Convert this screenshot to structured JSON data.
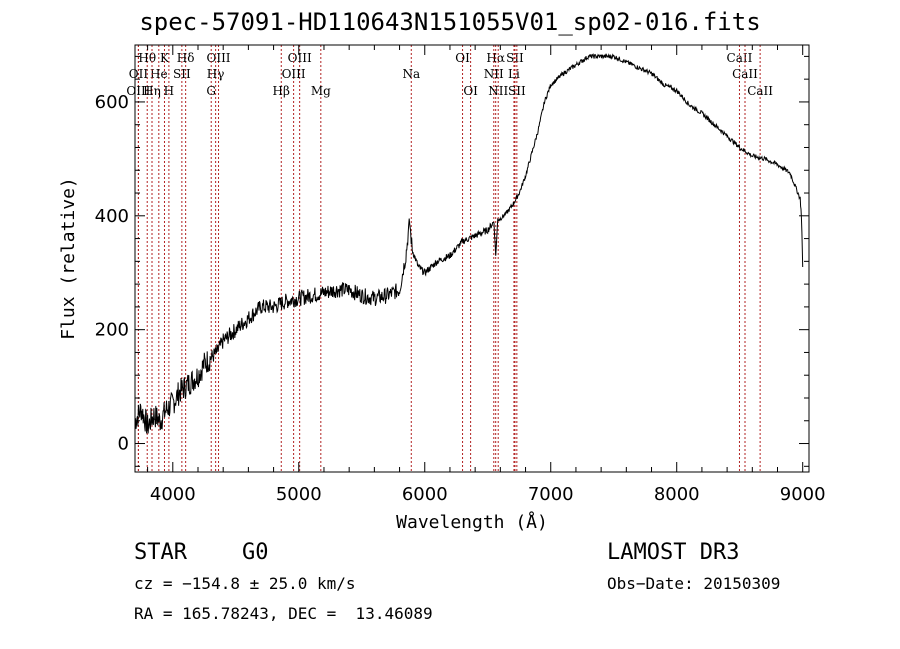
{
  "chart_data": {
    "type": "line",
    "title": "spec-57091-HD110643N151055V01_sp02-016.fits",
    "xlabel": "Wavelength (Å)",
    "ylabel": "Flux (relative)",
    "xlim": [
      3700,
      9050
    ],
    "ylim": [
      -50,
      700
    ],
    "xticks": [
      4000,
      5000,
      6000,
      7000,
      8000,
      9000
    ],
    "yticks": [
      0,
      200,
      400,
      600
    ],
    "xtick_labels": [
      "4000",
      "5000",
      "6000",
      "7000",
      "8000",
      "9000"
    ],
    "ytick_labels": [
      "0",
      "200",
      "400",
      "600"
    ],
    "series": [
      {
        "name": "spectrum",
        "x": [
          3700,
          3750,
          3800,
          3850,
          3900,
          3950,
          4000,
          4050,
          4100,
          4150,
          4200,
          4250,
          4300,
          4350,
          4400,
          4450,
          4500,
          4600,
          4700,
          4800,
          4900,
          5000,
          5100,
          5200,
          5300,
          5400,
          5500,
          5600,
          5700,
          5800,
          5850,
          5880,
          5900,
          5950,
          6000,
          6050,
          6100,
          6200,
          6300,
          6400,
          6500,
          6550,
          6563,
          6580,
          6600,
          6650,
          6700,
          6750,
          6800,
          6850,
          6900,
          6950,
          7000,
          7100,
          7200,
          7300,
          7400,
          7500,
          7600,
          7700,
          7800,
          7900,
          8000,
          8100,
          8200,
          8300,
          8400,
          8500,
          8600,
          8700,
          8800,
          8900,
          8980,
          8990,
          9000
        ],
        "y": [
          40,
          60,
          30,
          50,
          40,
          60,
          70,
          90,
          100,
          110,
          120,
          140,
          150,
          160,
          180,
          190,
          200,
          220,
          240,
          240,
          250,
          255,
          260,
          265,
          270,
          270,
          260,
          255,
          260,
          270,
          330,
          390,
          340,
          310,
          300,
          310,
          320,
          330,
          355,
          365,
          375,
          390,
          330,
          395,
          395,
          405,
          420,
          440,
          470,
          510,
          550,
          600,
          630,
          650,
          665,
          680,
          680,
          680,
          670,
          660,
          650,
          630,
          620,
          595,
          580,
          560,
          540,
          520,
          505,
          500,
          490,
          475,
          430,
          400,
          310
        ]
      }
    ],
    "lines": [
      {
        "label": "Hθ",
        "x": 3797,
        "row": 0
      },
      {
        "label": "K",
        "x": 3934,
        "row": 0
      },
      {
        "label": "Hδ",
        "x": 4102,
        "row": 0
      },
      {
        "label": "OIII",
        "x": 4363,
        "row": 0
      },
      {
        "label": "OIII",
        "x": 5007,
        "row": 0
      },
      {
        "label": "OI",
        "x": 6300,
        "row": 0
      },
      {
        "label": "Hα",
        "x": 6563,
        "row": 0
      },
      {
        "label": "SII",
        "x": 6716,
        "row": 0
      },
      {
        "label": "CaII",
        "x": 8498,
        "row": 0
      },
      {
        "label": "OII",
        "x": 3727,
        "row": 1
      },
      {
        "label": "He",
        "x": 3889,
        "row": 1
      },
      {
        "label": "SII",
        "x": 4072,
        "row": 1
      },
      {
        "label": "Hγ",
        "x": 4340,
        "row": 1
      },
      {
        "label": "OIII",
        "x": 4959,
        "row": 1
      },
      {
        "label": "Na",
        "x": 5893,
        "row": 1
      },
      {
        "label": "NII",
        "x": 6548,
        "row": 1
      },
      {
        "label": "Li",
        "x": 6708,
        "row": 1
      },
      {
        "label": "CaII",
        "x": 8542,
        "row": 1
      },
      {
        "label": "OIII",
        "x": 3727,
        "row": 2
      },
      {
        "label": "Hη",
        "x": 3835,
        "row": 2
      },
      {
        "label": "H",
        "x": 3969,
        "row": 2
      },
      {
        "label": "G",
        "x": 4305,
        "row": 2
      },
      {
        "label": "Hβ",
        "x": 4861,
        "row": 2
      },
      {
        "label": "Mg",
        "x": 5175,
        "row": 2
      },
      {
        "label": "OI",
        "x": 6364,
        "row": 2
      },
      {
        "label": "NII",
        "x": 6583,
        "row": 2
      },
      {
        "label": "SII",
        "x": 6731,
        "row": 2
      },
      {
        "label": "CaII",
        "x": 8662,
        "row": 2
      }
    ]
  },
  "info": {
    "object_class": "STAR",
    "subclass": "G0",
    "survey": "LAMOST DR3",
    "cz": "cz = −154.8 ± 25.0 km/s",
    "obs_date": "Obs−Date: 20150309",
    "coords": "RA = 165.78243, DEC =  13.46089"
  },
  "colors": {
    "spectrum": "#000000",
    "line_marker": "#b22222",
    "axis": "#000000"
  }
}
